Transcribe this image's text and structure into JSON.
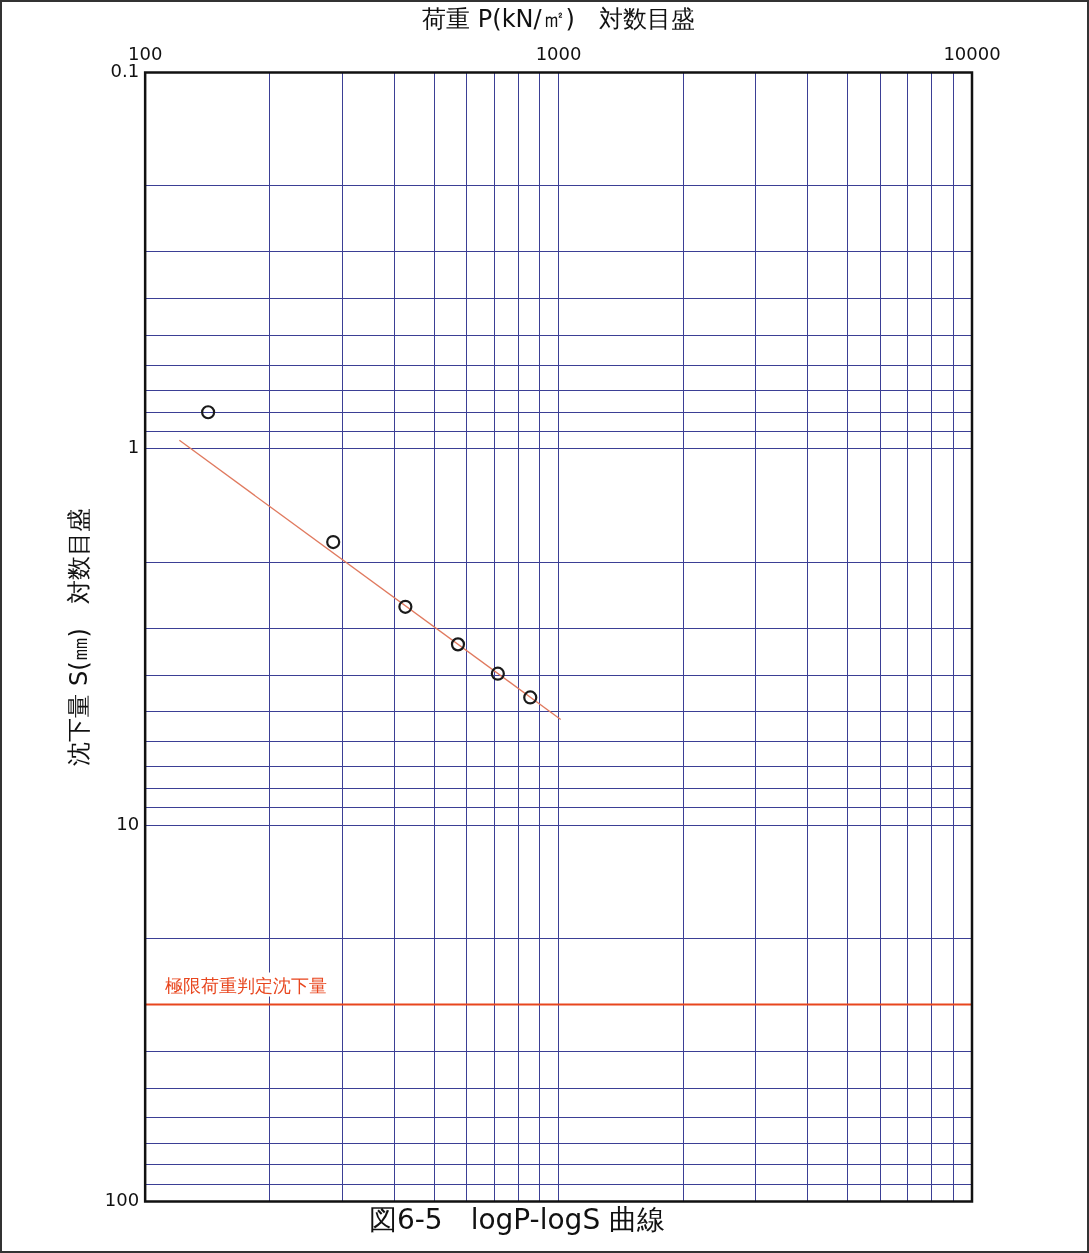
{
  "chart_data": {
    "type": "scatter",
    "title": "図6-5　logP-logS 曲線",
    "xlabel": "荷重 P(kN/㎡)　対数目盛",
    "ylabel": "沈下量 S(㎜)　対数目盛",
    "log": "xy",
    "marker": "circle",
    "grid": true,
    "legend": false,
    "xlim": [
      100,
      10000
    ],
    "xticks": [
      100,
      {
        "value": 200,
        "label": null
      },
      {
        "value": 300,
        "label": null
      },
      {
        "value": 400,
        "label": null
      },
      {
        "value": 500,
        "label": null
      },
      {
        "value": 600,
        "label": null
      },
      {
        "value": 700,
        "label": null
      },
      {
        "value": 800,
        "label": null
      },
      {
        "value": 900,
        "label": null
      },
      1000,
      {
        "value": 2000,
        "label": null
      },
      {
        "value": 3000,
        "label": null
      },
      {
        "value": 4000,
        "label": null
      },
      {
        "value": 5000,
        "label": null
      },
      {
        "value": 6000,
        "label": null
      },
      {
        "value": 7000,
        "label": null
      },
      {
        "value": 8000,
        "label": null
      },
      {
        "value": 9000,
        "label": null
      },
      10000
    ],
    "ylim": [
      100,
      0.1
    ],
    "yticks": [
      0.1,
      {
        "value": 0.2,
        "label": null
      },
      {
        "value": 0.3,
        "label": null
      },
      {
        "value": 0.4,
        "label": null
      },
      {
        "value": 0.5,
        "label": null
      },
      {
        "value": 0.6,
        "label": null
      },
      {
        "value": 0.7,
        "label": null
      },
      {
        "value": 0.8,
        "label": null
      },
      {
        "value": 0.9,
        "label": null
      },
      1,
      {
        "value": 2,
        "label": null
      },
      {
        "value": 3,
        "label": null
      },
      {
        "value": 4,
        "label": null
      },
      {
        "value": 5,
        "label": null
      },
      {
        "value": 6,
        "label": null
      },
      {
        "value": 7,
        "label": null
      },
      {
        "value": 8,
        "label": null
      },
      {
        "value": 9,
        "label": null
      },
      10,
      {
        "value": 20,
        "label": null
      },
      {
        "value": 30,
        "label": null
      },
      {
        "value": 40,
        "label": null
      },
      {
        "value": 50,
        "label": null
      },
      {
        "value": 60,
        "label": null
      },
      {
        "value": 70,
        "label": null
      },
      {
        "value": 80,
        "label": null
      },
      {
        "value": 90,
        "label": null
      },
      100
    ],
    "series": [
      {
        "color": "#1a1a1a",
        "x": [
          142,
          285,
          426,
          571,
          713,
          854
        ],
        "values": [
          0.8,
          1.77,
          2.63,
          3.31,
          3.96,
          4.58
        ]
      },
      {
        "type": "line",
        "color": "#e07a5f",
        "marker": "none",
        "x": [
          121,
          1012
        ],
        "values": [
          0.95,
          5.24
        ]
      }
    ],
    "ref_lines": [
      {
        "axis": "y",
        "value": 30,
        "label": "極限荷重判定沈下量",
        "color": "#e8461e"
      }
    ]
  }
}
